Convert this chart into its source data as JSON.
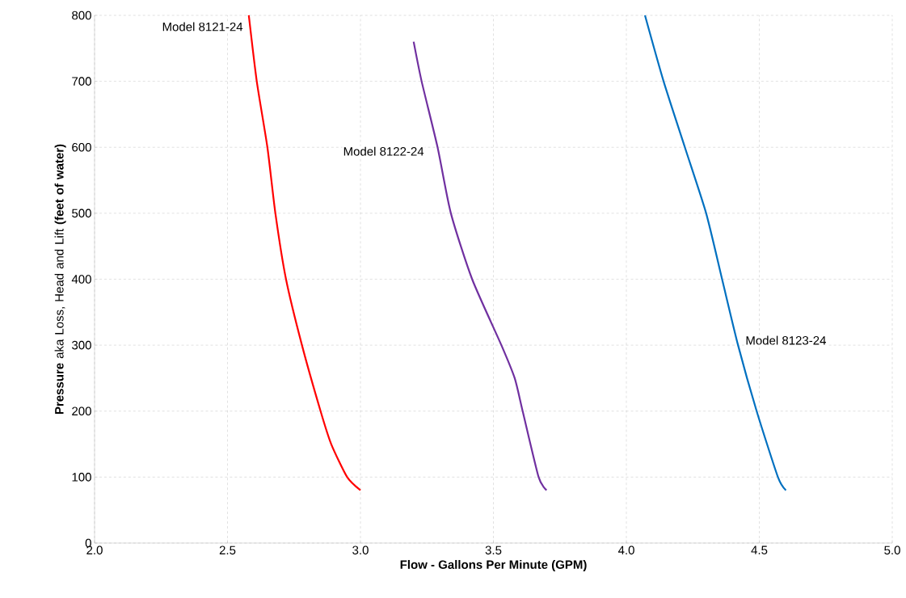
{
  "chart_data": {
    "type": "line",
    "xlabel": "Flow - Gallons Per Minute (GPM)",
    "ylabel": "**Pressure** aka Loss, Head and Lift **(feet of water)**",
    "xlim": [
      2.0,
      5.0
    ],
    "ylim": [
      0,
      800
    ],
    "xticks": [
      {
        "value": 2.0,
        "label": "2.0"
      },
      {
        "value": 2.5,
        "label": "2.5"
      },
      {
        "value": 3.0,
        "label": "3.0"
      },
      {
        "value": 3.5,
        "label": "3.5"
      },
      {
        "value": 4.0,
        "label": "4.0"
      },
      {
        "value": 4.5,
        "label": "4.5"
      },
      {
        "value": 5.0,
        "label": "5.0"
      }
    ],
    "yticks": [
      0,
      100,
      200,
      300,
      400,
      500,
      600,
      700,
      800
    ],
    "grid": true,
    "marker": "none",
    "line_style": "solid",
    "series": [
      {
        "name": "Model 8121-24",
        "color": "#ff0000",
        "x": [
          2.58,
          2.61,
          2.65,
          2.68,
          2.72,
          2.78,
          2.85,
          2.89,
          2.95,
          3.0
        ],
        "values": [
          800,
          700,
          600,
          500,
          400,
          300,
          200,
          150,
          100,
          80
        ]
      },
      {
        "name": "Model 8122-24",
        "color": "#7030a0",
        "x": [
          3.2,
          3.23,
          3.29,
          3.34,
          3.42,
          3.53,
          3.58,
          3.61,
          3.67,
          3.7
        ],
        "values": [
          760,
          700,
          600,
          500,
          400,
          300,
          250,
          200,
          100,
          80
        ]
      },
      {
        "name": "Model 8123-24",
        "color": "#0070c0",
        "x": [
          4.07,
          4.14,
          4.22,
          4.3,
          4.36,
          4.42,
          4.49,
          4.57,
          4.6
        ],
        "values": [
          800,
          700,
          600,
          500,
          400,
          300,
          200,
          100,
          80
        ]
      }
    ]
  }
}
